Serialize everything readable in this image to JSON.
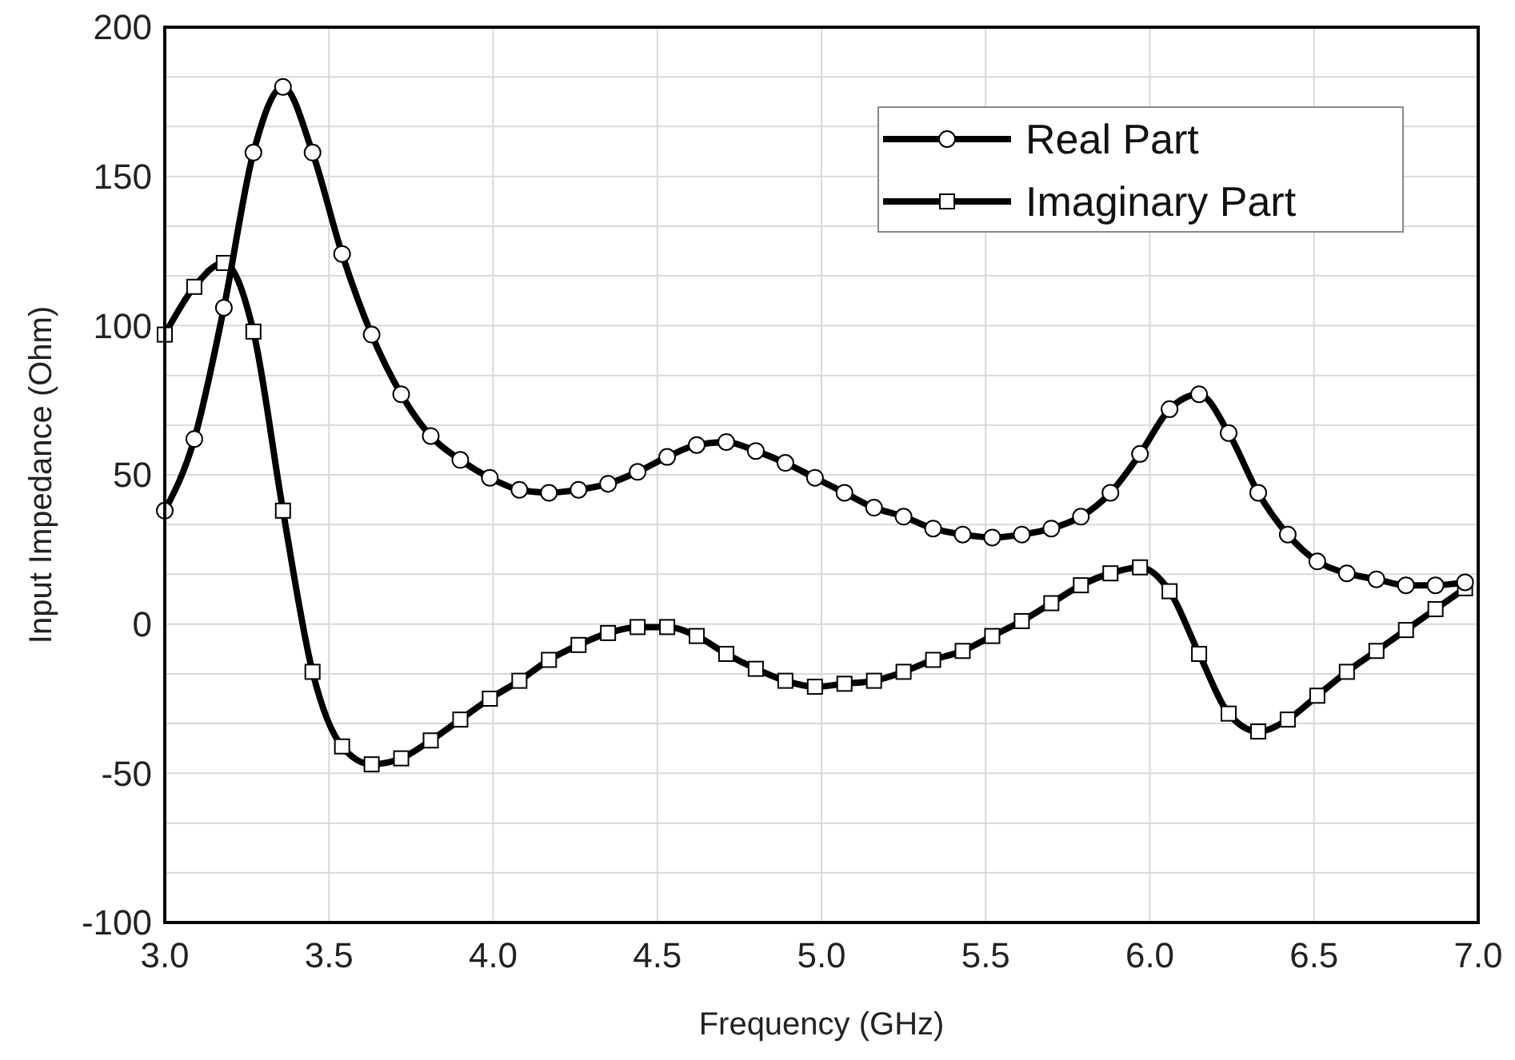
{
  "chart_data": {
    "type": "line",
    "xlabel": "Frequency (GHz)",
    "ylabel": "Input Impedance (Ohm)",
    "x": [
      3.0,
      3.09,
      3.18,
      3.27,
      3.36,
      3.45,
      3.54,
      3.63,
      3.72,
      3.81,
      3.9,
      3.99,
      4.08,
      4.17,
      4.26,
      4.35,
      4.44,
      4.53,
      4.62,
      4.71,
      4.8,
      4.89,
      4.98,
      5.07,
      5.16,
      5.25,
      5.34,
      5.43,
      5.52,
      5.61,
      5.7,
      5.79,
      5.88,
      5.97,
      6.06,
      6.15,
      6.24,
      6.33,
      6.42,
      6.51,
      6.6,
      6.69,
      6.78,
      6.87,
      6.96
    ],
    "series": [
      {
        "name": "Real Part",
        "color": "#000000",
        "marker": "circle",
        "values": [
          38,
          62,
          106,
          158,
          180,
          158,
          124,
          97,
          77,
          63,
          55,
          49,
          45,
          44,
          45,
          47,
          51,
          56,
          60,
          61,
          58,
          54,
          49,
          44,
          39,
          36,
          32,
          30,
          29,
          30,
          32,
          36,
          44,
          57,
          72,
          77,
          64,
          44,
          30,
          21,
          17,
          15,
          13,
          13,
          14
        ]
      },
      {
        "name": "Imaginary Part",
        "color": "#000000",
        "marker": "square",
        "values": [
          97,
          113,
          121,
          98,
          38,
          -16,
          -41,
          -47,
          -45,
          -39,
          -32,
          -25,
          -19,
          -12,
          -7,
          -3,
          -1,
          -1,
          -4,
          -10,
          -15,
          -19,
          -21,
          -20,
          -19,
          -16,
          -12,
          -9,
          -4,
          1,
          7,
          13,
          17,
          19,
          11,
          -10,
          -30,
          -36,
          -32,
          -24,
          -16,
          -9,
          -2,
          5,
          12
        ]
      }
    ],
    "xlim": [
      3.0,
      7.0
    ],
    "xticks": [
      {
        "value": 3.0,
        "label": "3.0"
      },
      3.5,
      {
        "value": 4.0,
        "label": "4.0"
      },
      4.5,
      {
        "value": 5.0,
        "label": "5.0"
      },
      5.5,
      {
        "value": 6.0,
        "label": "6.0"
      },
      6.5,
      {
        "value": 7.0,
        "label": "7.0"
      }
    ],
    "ylim": [
      -100,
      200
    ],
    "yticks": [
      -100,
      {
        "value": -83.3,
        "label": null
      },
      {
        "value": -66.7,
        "label": null
      },
      -50,
      {
        "value": -33.3,
        "label": null
      },
      {
        "value": -16.7,
        "label": null
      },
      0,
      {
        "value": 16.7,
        "label": null
      },
      {
        "value": 33.3,
        "label": null
      },
      50,
      {
        "value": 66.7,
        "label": null
      },
      {
        "value": 83.3,
        "label": null
      },
      100,
      {
        "value": 116.7,
        "label": null
      },
      {
        "value": 133.3,
        "label": null
      },
      150,
      {
        "value": 166.7,
        "label": null
      },
      {
        "value": 183.3,
        "label": null
      },
      200
    ],
    "grid": true,
    "legend": "top right",
    "line_style": "solid"
  }
}
